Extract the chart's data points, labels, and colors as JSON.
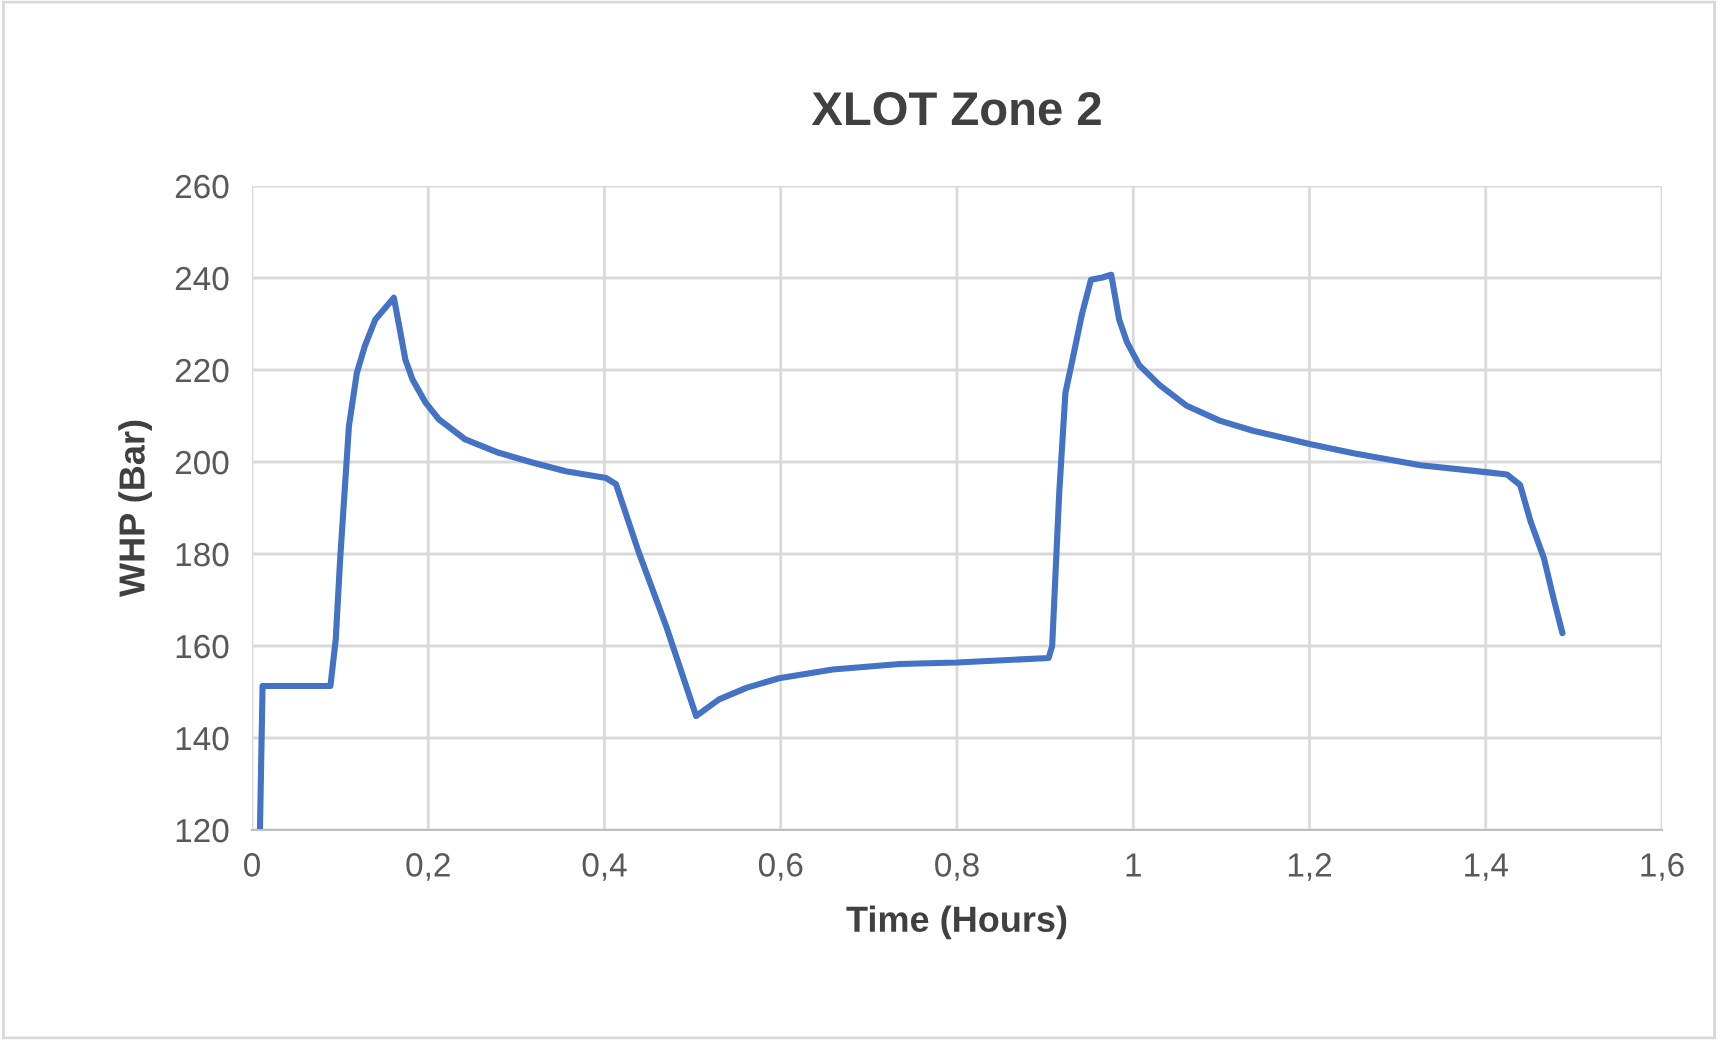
{
  "chart_data": {
    "type": "line",
    "title": "XLOT Zone 2",
    "xlabel": "Time (Hours)",
    "ylabel": "WHP (Bar)",
    "xlim": [
      0,
      1.6
    ],
    "ylim": [
      120,
      260
    ],
    "xticks": [
      0,
      {
        "value": 0.2,
        "label": "0,2"
      },
      {
        "value": 0.4,
        "label": "0,4"
      },
      {
        "value": 0.6,
        "label": "0,6"
      },
      {
        "value": 0.8,
        "label": "0,8"
      },
      1,
      {
        "value": 1.2,
        "label": "1,2"
      },
      {
        "value": 1.4,
        "label": "1,4"
      },
      {
        "value": 1.6,
        "label": "1,6"
      }
    ],
    "yticks": [
      120,
      140,
      160,
      180,
      200,
      220,
      240,
      260
    ],
    "grid": true,
    "marker": "none",
    "line_style": "solid",
    "series": [
      {
        "color": "#4472c4",
        "x": [
          0.009,
          0.012,
          0.089,
          0.095,
          0.1,
          0.11,
          0.119,
          0.128,
          0.14,
          0.161,
          0.167,
          0.174,
          0.182,
          0.197,
          0.212,
          0.242,
          0.28,
          0.318,
          0.356,
          0.402,
          0.413,
          0.439,
          0.47,
          0.504,
          0.53,
          0.561,
          0.598,
          0.659,
          0.735,
          0.8,
          0.904,
          0.908,
          0.916,
          0.923,
          0.931,
          0.942,
          0.952,
          0.965,
          0.975,
          0.984,
          0.993,
          1.007,
          1.03,
          1.06,
          1.098,
          1.136,
          1.2,
          1.25,
          1.326,
          1.4,
          1.424,
          1.439,
          1.451,
          1.466,
          1.477,
          1.487
        ],
        "values": [
          120,
          151.3,
          151.3,
          161.4,
          178.8,
          207.8,
          219.4,
          225.2,
          231,
          235.7,
          229.6,
          222.3,
          218,
          212.9,
          209.3,
          204.9,
          202,
          199.9,
          198,
          196.5,
          195.2,
          180.3,
          164.3,
          144.8,
          148.4,
          150.9,
          153,
          154.9,
          156.1,
          156.4,
          157.4,
          160,
          193.3,
          215,
          222.2,
          232.3,
          239.6,
          240.1,
          240.7,
          231,
          226,
          221,
          216.7,
          212.3,
          209,
          206.8,
          203.9,
          201.9,
          199.3,
          197.8,
          197.3,
          195,
          187,
          179.1,
          170.3,
          162.8
        ]
      }
    ]
  }
}
